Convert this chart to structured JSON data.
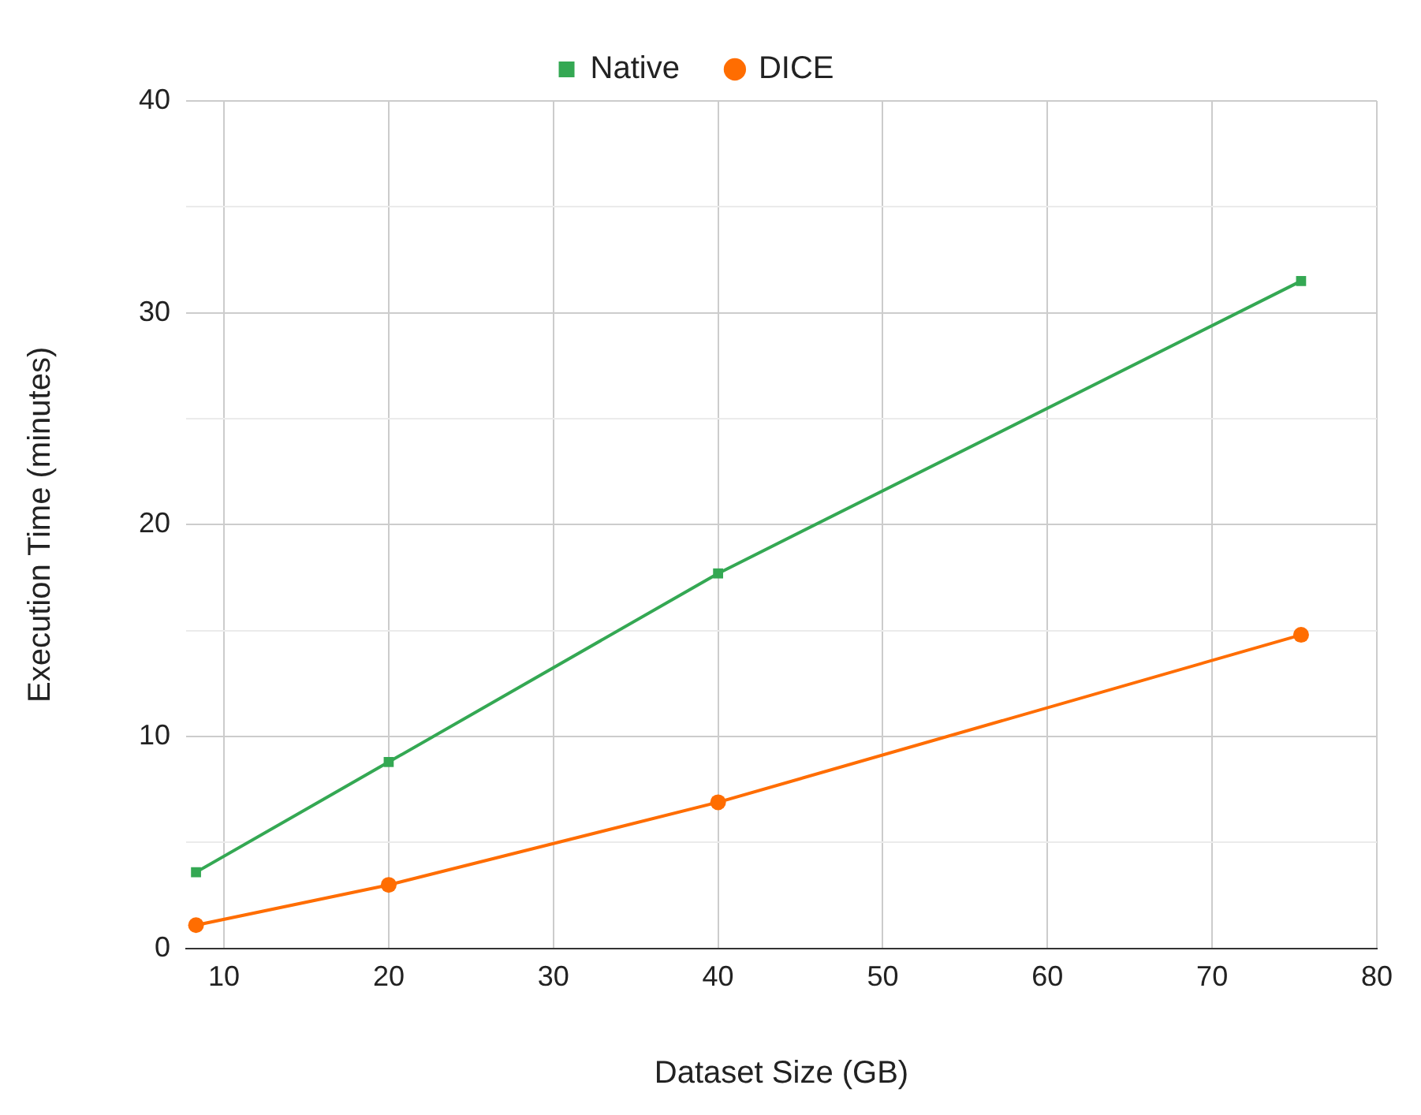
{
  "chart_data": {
    "type": "line",
    "xlabel": "Dataset Size (GB)",
    "ylabel": "Execution Time (minutes)",
    "x": [
      8.3,
      20,
      40,
      75.4
    ],
    "series": [
      {
        "name": "Native",
        "color": "#34a853",
        "marker": "square",
        "values": [
          3.6,
          8.8,
          17.7,
          31.5
        ]
      },
      {
        "name": "DICE",
        "color": "#ff6d01",
        "marker": "circle",
        "values": [
          1.1,
          3.0,
          6.9,
          14.8
        ]
      }
    ],
    "xlim": [
      7.7,
      80
    ],
    "xticks": [
      10,
      20,
      30,
      40,
      50,
      60,
      70,
      80
    ],
    "ylim": [
      0,
      40
    ],
    "yticks": [
      0,
      {
        "value": 5,
        "label": null
      },
      10,
      {
        "value": 15,
        "label": null
      },
      20,
      {
        "value": 25,
        "label": null
      },
      30,
      {
        "value": 35,
        "label": null
      },
      40
    ],
    "grid": true,
    "legend": "top",
    "line_style": "solid"
  }
}
